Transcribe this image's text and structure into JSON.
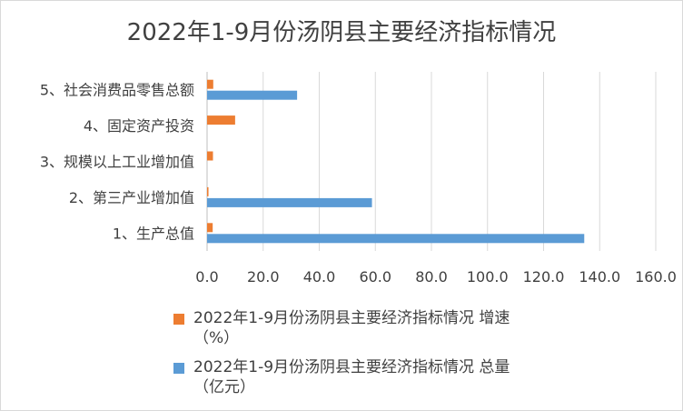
{
  "chart_data": {
    "type": "bar",
    "orientation": "horizontal",
    "title": "2022年1-9月份汤阴县主要经济指标情况",
    "categories": [
      "1、生产总值",
      "2、第三产业增加值",
      "3、规模以上工业增加值",
      "4、固定资产投资",
      "5、社会消费品零售总额"
    ],
    "series": [
      {
        "name": "2022年1-9月份汤阴县主要经济指标情况 增速（%）",
        "color": "#ed7d31",
        "values": [
          2.0,
          0.5,
          2.1,
          10.0,
          2.2
        ]
      },
      {
        "name": "2022年1-9月份汤阴县主要经济指标情况 总量（亿元）",
        "color": "#5b9bd5",
        "values": [
          134.5,
          58.8,
          null,
          null,
          32.1
        ]
      }
    ],
    "xlim": [
      0,
      160
    ],
    "xticks": [
      "0.0",
      "20.0",
      "40.0",
      "60.0",
      "80.0",
      "100.0",
      "120.0",
      "140.0",
      "160.0"
    ],
    "grid": true,
    "legend_position": "bottom"
  },
  "legend": {
    "item0_line1": "2022年1-9月份汤阴县主要经济指标情况 增速",
    "item0_line2": "（%）",
    "item1_line1": "2022年1-9月份汤阴县主要经济指标情况 总量",
    "item1_line2": "（亿元）"
  }
}
